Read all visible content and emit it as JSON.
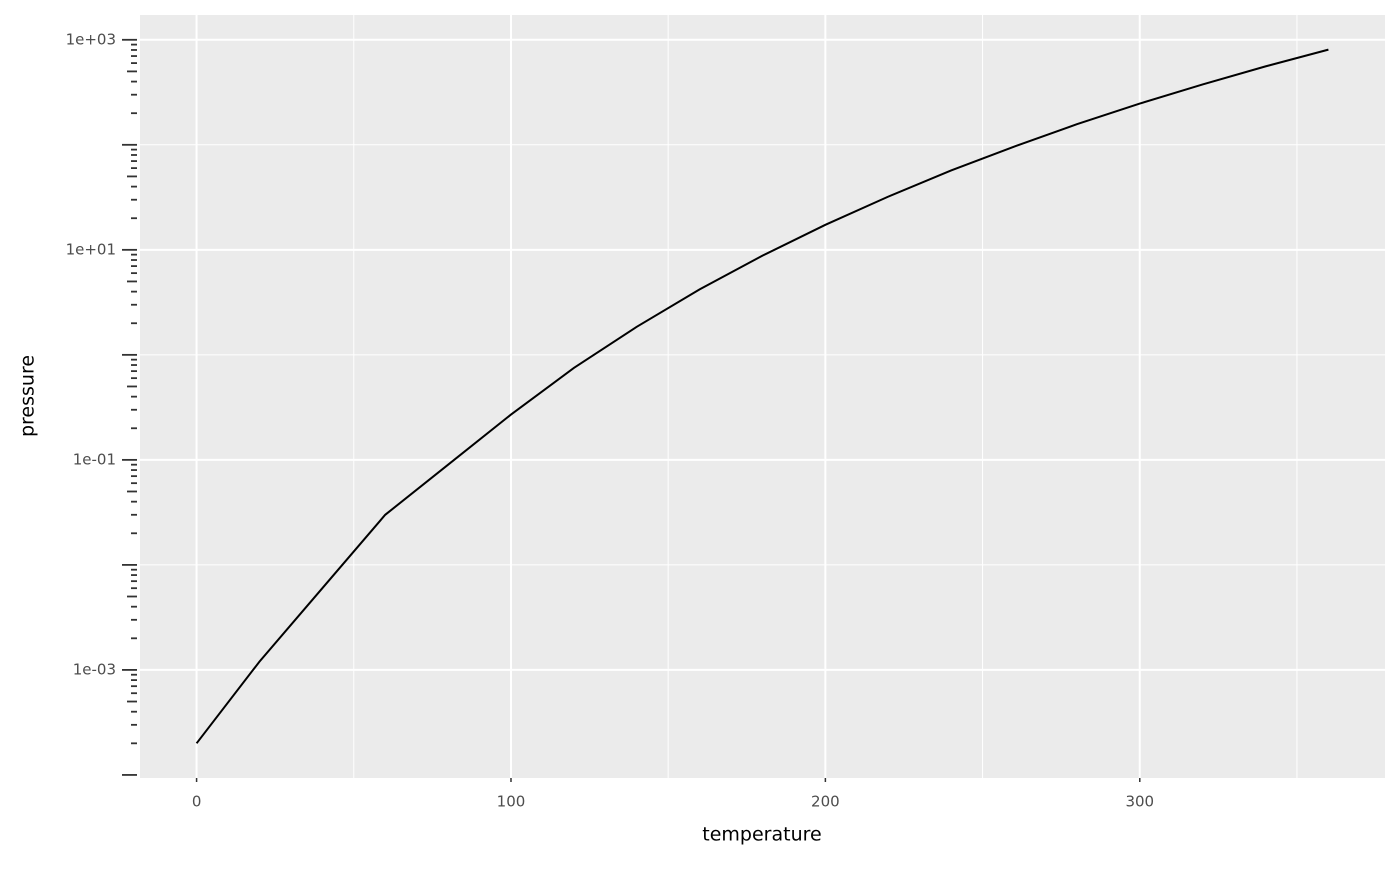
{
  "chart_data": {
    "type": "line",
    "x_label": "temperature",
    "y_label": "pressure",
    "x": [
      0,
      20,
      40,
      60,
      80,
      100,
      120,
      140,
      160,
      180,
      200,
      220,
      240,
      260,
      280,
      300,
      320,
      340,
      360
    ],
    "values": [
      0.0002,
      0.0012,
      0.006,
      0.03,
      0.09,
      0.27,
      0.75,
      1.85,
      4.2,
      8.8,
      17.3,
      32.1,
      57,
      96,
      157,
      247,
      376,
      558,
      806
    ],
    "color": "#000000",
    "xlim": [
      -18,
      378
    ],
    "xticks": [
      0,
      100,
      200,
      300
    ],
    "x_minor_grid": [
      50,
      150,
      250,
      350
    ],
    "ylim": [
      9.35e-05,
      1722
    ],
    "y_log": true,
    "yticks": [
      {
        "value": 0.001,
        "label": "1e-03"
      },
      {
        "value": 0.1,
        "label": "1e-01"
      },
      {
        "value": 10,
        "label": "1e+01"
      },
      {
        "value": 1000,
        "label": "1e+03"
      }
    ],
    "y_minor_grid": [
      0.01,
      1,
      100
    ],
    "grid": true
  }
}
